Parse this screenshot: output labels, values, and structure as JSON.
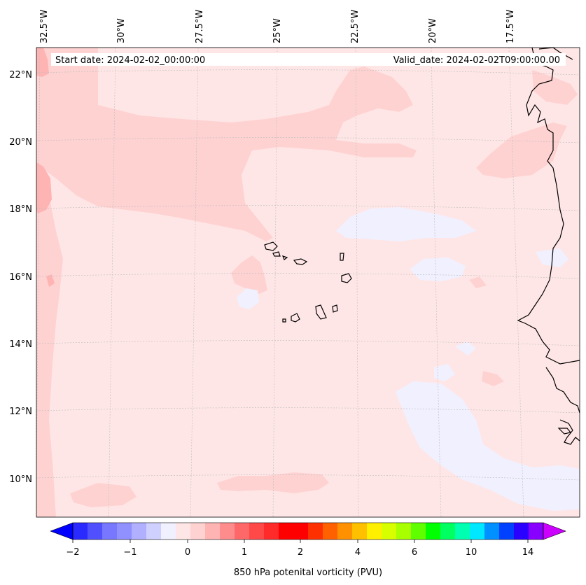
{
  "map": {
    "start_date_label": "Start date: 2024-02-02_00:00:00",
    "valid_date_label": "Valid_date: 2024-02-02T09:00:00.00",
    "lon_labels": [
      "32.5°W",
      "30°W",
      "27.5°W",
      "25°W",
      "22.5°W",
      "20°W",
      "17.5°W"
    ],
    "lat_labels": [
      "22°N",
      "20°N",
      "18°N",
      "16°N",
      "14°N",
      "12°N",
      "10°N"
    ],
    "field_colors": {
      "background": "#ffe6e6",
      "light_red": "#ffd2d2",
      "mid_red": "#ffb4b4",
      "light_blue": "#f0f0ff",
      "coastline": "#000000"
    }
  },
  "colorbar": {
    "label": "850 hPa potenital vorticity (PVU)",
    "tick_labels": [
      "−2",
      "−1",
      "0",
      "1",
      "2",
      "4",
      "6",
      "10",
      "14"
    ],
    "colors": [
      "#0000ff",
      "#2a2aff",
      "#5050ff",
      "#7777ff",
      "#9090ff",
      "#b0b0ff",
      "#d0d0ff",
      "#f0f0ff",
      "#ffe6e6",
      "#ffd2d2",
      "#ffb4b4",
      "#ff8c8c",
      "#ff6868",
      "#ff4848",
      "#ff2a2a",
      "#ff0000",
      "#ff0000",
      "#ff3000",
      "#ff6000",
      "#ff9000",
      "#ffc000",
      "#fff000",
      "#d8ff00",
      "#a8ff00",
      "#60ff00",
      "#00ff00",
      "#00ff60",
      "#00ffb0",
      "#00e8ff",
      "#0090ff",
      "#0040ff",
      "#2a00ff",
      "#8800ff",
      "#cc00ff"
    ]
  }
}
